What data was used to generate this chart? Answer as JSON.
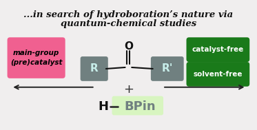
{
  "bg_color": "#f0eeee",
  "title_line1": "...in search of hydroboration’s nature via",
  "title_line2": "quantum-chemical studies",
  "title_color": "#111111",
  "title_fontsize": 9.5,
  "pink_box_text": "main-group\n(pre)catalyst",
  "pink_box_color": "#f06090",
  "pink_box_text_color": "#000000",
  "green_box1_text": "catalyst-free",
  "green_box2_text": "solvent-free",
  "green_box_color": "#1a7a1a",
  "green_box_text_color": "#ffffff",
  "R_box_color": "#708080",
  "R_text_color": "#c8eeea",
  "hbpin_bg": "#d8f5c0",
  "hbpin_H_color": "#111111",
  "hbpin_BPin_color": "#708080",
  "arrow_color": "#222222"
}
